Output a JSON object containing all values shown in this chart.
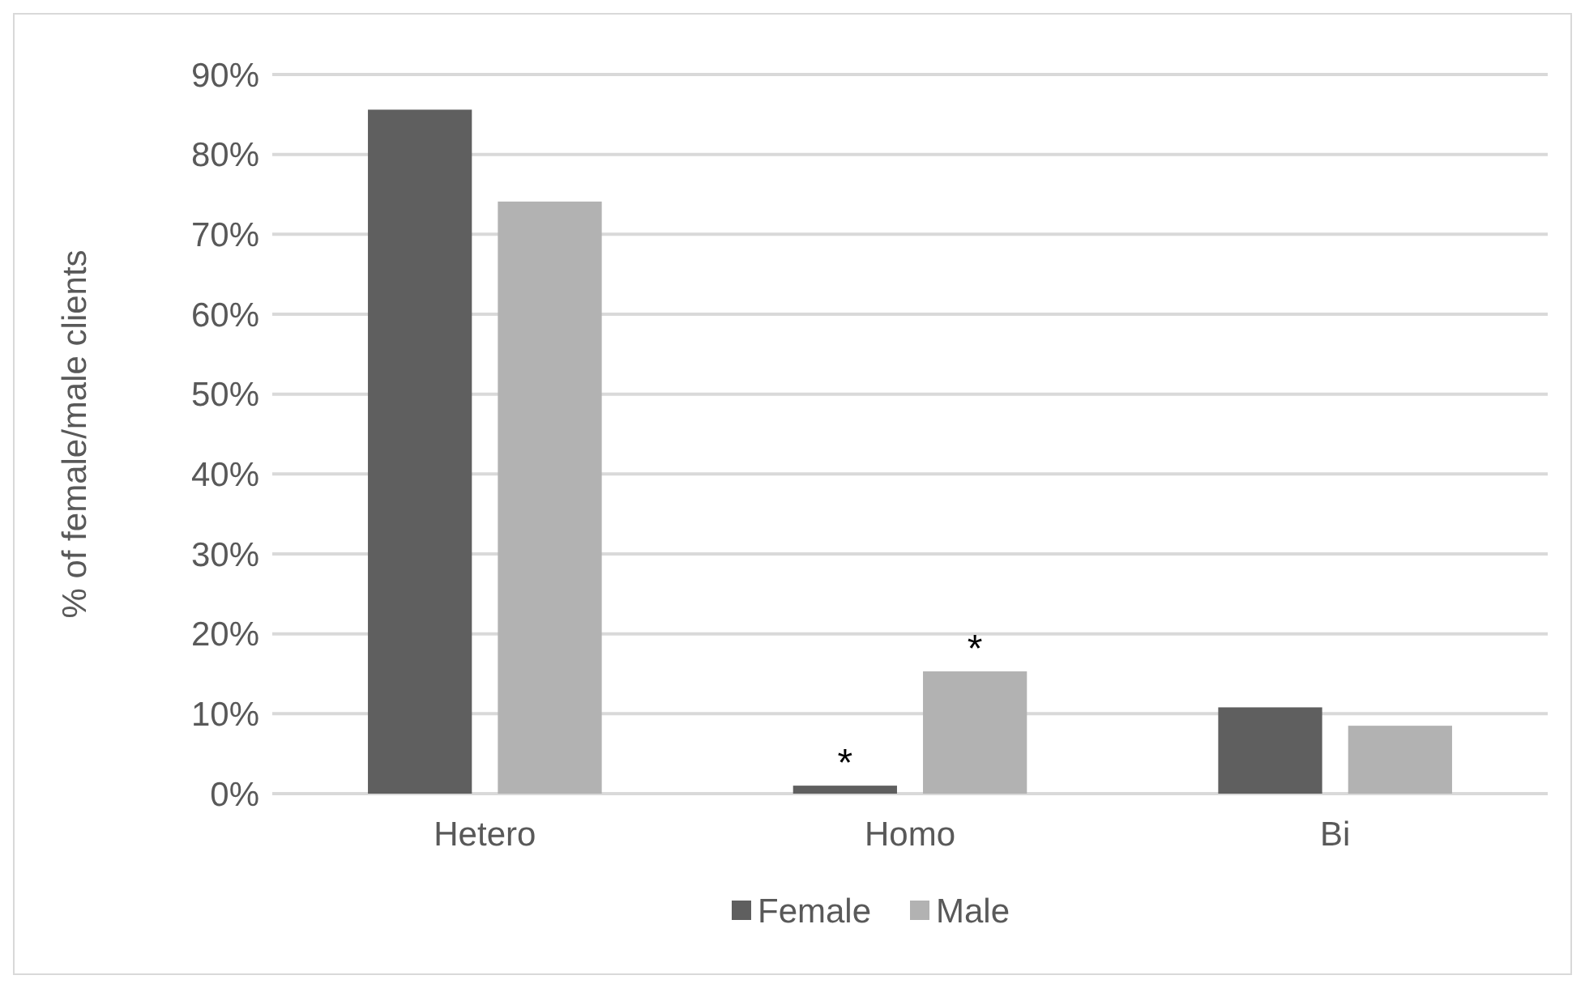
{
  "chart_data": {
    "type": "bar",
    "ylabel": "% of female/male clients",
    "categories": [
      "Hetero",
      "Homo",
      "Bi"
    ],
    "series": [
      {
        "name": "Female",
        "color": "#5f5f5f",
        "values": [
          85.6,
          1.0,
          10.8
        ]
      },
      {
        "name": "Male",
        "color": "#b2b2b2",
        "values": [
          74.1,
          15.3,
          8.5
        ]
      }
    ],
    "ylim": [
      0,
      90
    ],
    "yticks": [
      {
        "value": 0,
        "label": "0%"
      },
      {
        "value": 10,
        "label": "10%"
      },
      {
        "value": 20,
        "label": "20%"
      },
      {
        "value": 30,
        "label": "30%"
      },
      {
        "value": 40,
        "label": "40%"
      },
      {
        "value": 50,
        "label": "50%"
      },
      {
        "value": 60,
        "label": "60%"
      },
      {
        "value": 70,
        "label": "70%"
      },
      {
        "value": 80,
        "label": "80%"
      },
      {
        "value": 90,
        "label": "90%"
      }
    ],
    "grid": "y",
    "legend": "bottom",
    "annotations": [
      "*",
      "*"
    ]
  }
}
